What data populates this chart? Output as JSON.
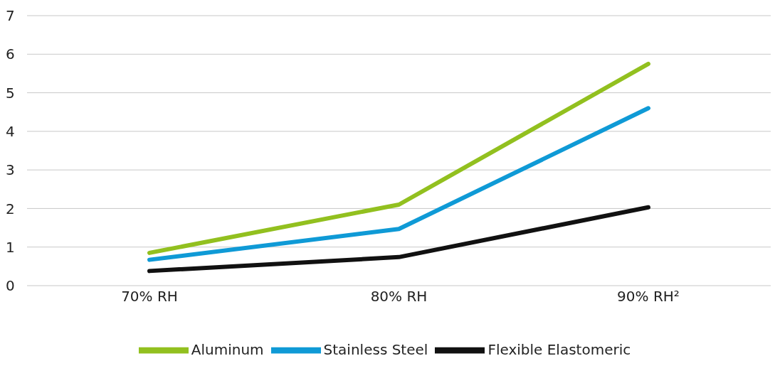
{
  "chart_data": {
    "type": "line",
    "categories": [
      "70% RH",
      "80% RH",
      "90% RH²"
    ],
    "series": [
      {
        "name": "Aluminum",
        "color": "#92c01f",
        "values": [
          0.85,
          2.1,
          5.75
        ]
      },
      {
        "name": "Stainless Steel",
        "color": "#0f9ad6",
        "values": [
          0.67,
          1.47,
          4.6
        ]
      },
      {
        "name": "Flexible Elastomeric",
        "color": "#111111",
        "values": [
          0.38,
          0.74,
          2.03
        ]
      }
    ],
    "ylim": [
      0,
      7
    ],
    "yticks": [
      0,
      1,
      2,
      3,
      4,
      5,
      6,
      7
    ],
    "grid": "y",
    "legend": "bottom",
    "marker": "none",
    "line_style": "solid"
  }
}
